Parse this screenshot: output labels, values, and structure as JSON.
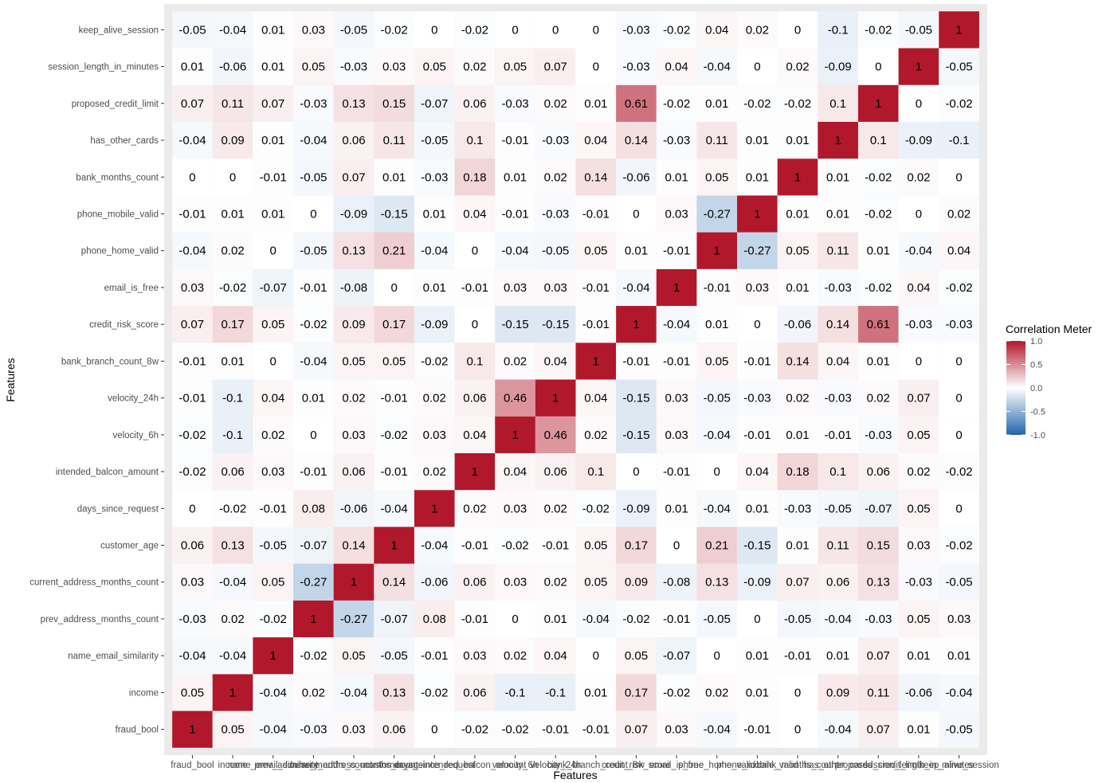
{
  "chart_data": {
    "type": "heatmap",
    "xlabel": "Features",
    "ylabel": "Features",
    "features": [
      "fraud_bool",
      "income",
      "name_email_similarity",
      "prev_address_months_count",
      "current_address_months_count",
      "customer_age",
      "days_since_request",
      "intended_balcon_amount",
      "velocity_6h",
      "velocity_24h",
      "bank_branch_count_8w",
      "credit_risk_score",
      "email_is_free",
      "phone_home_valid",
      "phone_mobile_valid",
      "bank_months_count",
      "has_other_cards",
      "proposed_credit_limit",
      "session_length_in_minutes",
      "keep_alive_session"
    ],
    "values": [
      [
        1,
        0.05,
        -0.04,
        -0.03,
        0.03,
        0.06,
        0,
        -0.02,
        -0.02,
        -0.01,
        -0.01,
        0.07,
        0.03,
        -0.04,
        -0.01,
        0,
        -0.04,
        0.07,
        0.01,
        -0.05
      ],
      [
        0.05,
        1,
        -0.04,
        0.02,
        -0.04,
        0.13,
        -0.02,
        0.06,
        -0.1,
        -0.1,
        0.01,
        0.17,
        -0.02,
        0.02,
        0.01,
        0,
        0.09,
        0.11,
        -0.06,
        -0.04
      ],
      [
        -0.04,
        -0.04,
        1,
        -0.02,
        0.05,
        -0.05,
        -0.01,
        0.03,
        0.02,
        0.04,
        0,
        0.05,
        -0.07,
        0,
        0.01,
        -0.01,
        0.01,
        0.07,
        0.01,
        0.01
      ],
      [
        -0.03,
        0.02,
        -0.02,
        1,
        -0.27,
        -0.07,
        0.08,
        -0.01,
        0,
        0.01,
        -0.04,
        -0.02,
        -0.01,
        -0.05,
        0,
        -0.05,
        -0.04,
        -0.03,
        0.05,
        0.03
      ],
      [
        0.03,
        -0.04,
        0.05,
        -0.27,
        1,
        0.14,
        -0.06,
        0.06,
        0.03,
        0.02,
        0.05,
        0.09,
        -0.08,
        0.13,
        -0.09,
        0.07,
        0.06,
        0.13,
        -0.03,
        -0.05
      ],
      [
        0.06,
        0.13,
        -0.05,
        -0.07,
        0.14,
        1,
        -0.04,
        -0.01,
        -0.02,
        -0.01,
        0.05,
        0.17,
        0,
        0.21,
        -0.15,
        0.01,
        0.11,
        0.15,
        0.03,
        -0.02
      ],
      [
        0,
        -0.02,
        -0.01,
        0.08,
        -0.06,
        -0.04,
        1,
        0.02,
        0.03,
        0.02,
        -0.02,
        -0.09,
        0.01,
        -0.04,
        0.01,
        -0.03,
        -0.05,
        -0.07,
        0.05,
        0
      ],
      [
        -0.02,
        0.06,
        0.03,
        -0.01,
        0.06,
        -0.01,
        0.02,
        1,
        0.04,
        0.06,
        0.1,
        0,
        -0.01,
        0,
        0.04,
        0.18,
        0.1,
        0.06,
        0.02,
        -0.02
      ],
      [
        -0.02,
        -0.1,
        0.02,
        0,
        0.03,
        -0.02,
        0.03,
        0.04,
        1,
        0.46,
        0.02,
        -0.15,
        0.03,
        -0.04,
        -0.01,
        0.01,
        -0.01,
        -0.03,
        0.05,
        0
      ],
      [
        -0.01,
        -0.1,
        0.04,
        0.01,
        0.02,
        -0.01,
        0.02,
        0.06,
        0.46,
        1,
        0.04,
        -0.15,
        0.03,
        -0.05,
        -0.03,
        0.02,
        -0.03,
        0.02,
        0.07,
        0
      ],
      [
        -0.01,
        0.01,
        0,
        -0.04,
        0.05,
        0.05,
        -0.02,
        0.1,
        0.02,
        0.04,
        1,
        -0.01,
        -0.01,
        0.05,
        -0.01,
        0.14,
        0.04,
        0.01,
        0,
        0
      ],
      [
        0.07,
        0.17,
        0.05,
        -0.02,
        0.09,
        0.17,
        -0.09,
        0,
        -0.15,
        -0.15,
        -0.01,
        1,
        -0.04,
        0.01,
        0,
        -0.06,
        0.14,
        0.61,
        -0.03,
        -0.03
      ],
      [
        0.03,
        -0.02,
        -0.07,
        -0.01,
        -0.08,
        0,
        0.01,
        -0.01,
        0.03,
        0.03,
        -0.01,
        -0.04,
        1,
        -0.01,
        0.03,
        0.01,
        -0.03,
        -0.02,
        0.04,
        -0.02
      ],
      [
        -0.04,
        0.02,
        0,
        -0.05,
        0.13,
        0.21,
        -0.04,
        0,
        -0.04,
        -0.05,
        0.05,
        0.01,
        -0.01,
        1,
        -0.27,
        0.05,
        0.11,
        0.01,
        -0.04,
        0.04
      ],
      [
        -0.01,
        0.01,
        0.01,
        0,
        -0.09,
        -0.15,
        0.01,
        0.04,
        -0.01,
        -0.03,
        -0.01,
        0,
        0.03,
        -0.27,
        1,
        0.01,
        0.01,
        -0.02,
        0,
        0.02
      ],
      [
        0,
        0,
        -0.01,
        -0.05,
        0.07,
        0.01,
        -0.03,
        0.18,
        0.01,
        0.02,
        0.14,
        -0.06,
        0.01,
        0.05,
        0.01,
        1,
        0.01,
        -0.02,
        0.02,
        0
      ],
      [
        -0.04,
        0.09,
        0.01,
        -0.04,
        0.06,
        0.11,
        -0.05,
        0.1,
        -0.01,
        -0.03,
        0.04,
        0.14,
        -0.03,
        0.11,
        0.01,
        0.01,
        1,
        0.1,
        -0.09,
        -0.1
      ],
      [
        0.07,
        0.11,
        0.07,
        -0.03,
        0.13,
        0.15,
        -0.07,
        0.06,
        -0.03,
        0.02,
        0.01,
        0.61,
        -0.02,
        0.01,
        -0.02,
        -0.02,
        0.1,
        1,
        0,
        -0.02
      ],
      [
        0.01,
        -0.06,
        0.01,
        0.05,
        -0.03,
        0.03,
        0.05,
        0.02,
        0.05,
        0.07,
        0,
        -0.03,
        0.04,
        -0.04,
        0,
        0.02,
        -0.09,
        0,
        1,
        -0.05
      ],
      [
        -0.05,
        -0.04,
        0.01,
        0.03,
        -0.05,
        -0.02,
        0,
        -0.02,
        0,
        0,
        0,
        -0.03,
        -0.02,
        0.04,
        0.02,
        0,
        -0.1,
        -0.02,
        -0.05,
        1
      ]
    ],
    "color_range": [
      -1,
      1
    ],
    "colors": {
      "low": "#2166ac",
      "mid": "#ffffff",
      "high": "#b2182b",
      "panel": "#ebebeb"
    },
    "legend": {
      "title": "Correlation Meter",
      "ticks": [
        1.0,
        0.5,
        0.0,
        -0.5,
        -1.0
      ],
      "tick_labels": [
        "1.0",
        "0.5",
        "0.0",
        "-0.5",
        "-1.0"
      ],
      "position": "right"
    },
    "grid": false
  }
}
